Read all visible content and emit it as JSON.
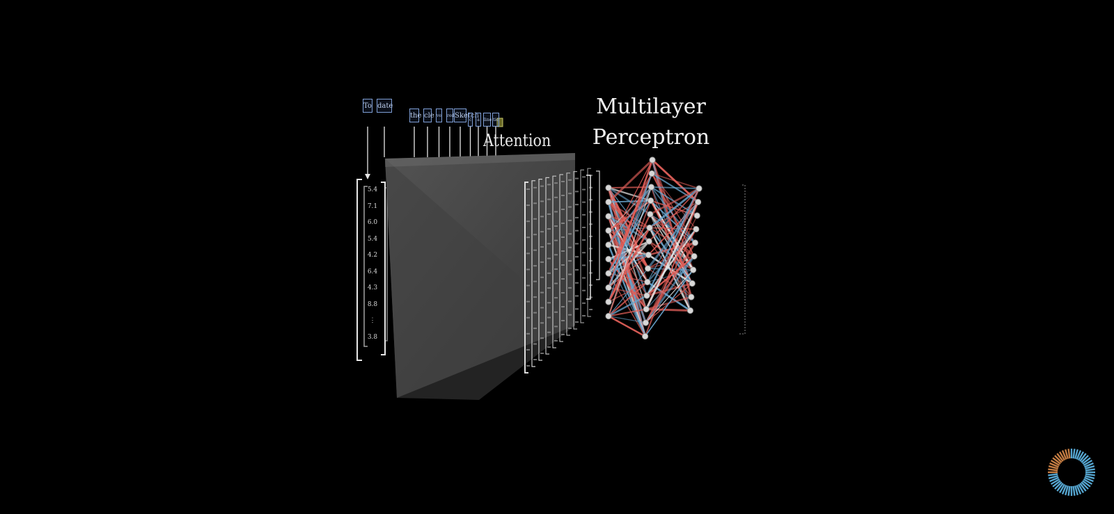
{
  "diagram": {
    "mlp_title_line1": "Multilayer",
    "mlp_title_line2": "Perceptron",
    "attention_label": "Attention",
    "tokens": [
      "To",
      "date",
      "the",
      "cle",
      "ve",
      "red",
      "Sketch",
      "c",
      "a",
      "line",
      "tic"
    ],
    "vector_values": [
      "5.4",
      "7.1",
      "6.0",
      "5.4",
      "4.2",
      "6.4",
      "4.3",
      "8.8",
      "⋮",
      "3.8"
    ],
    "colors": {
      "background": "#000000",
      "positive_weight": "#e2605a",
      "negative_weight": "#6aa6cf",
      "neutral_weight": "#e6e6e6",
      "attention_block": "#4a4a4a",
      "token_border": "#7f9fd6",
      "loading_blue": "#5fb7e6",
      "loading_orange": "#d98a4a"
    }
  },
  "loading_indicator": {
    "icon": "loading-spinner-icon"
  }
}
